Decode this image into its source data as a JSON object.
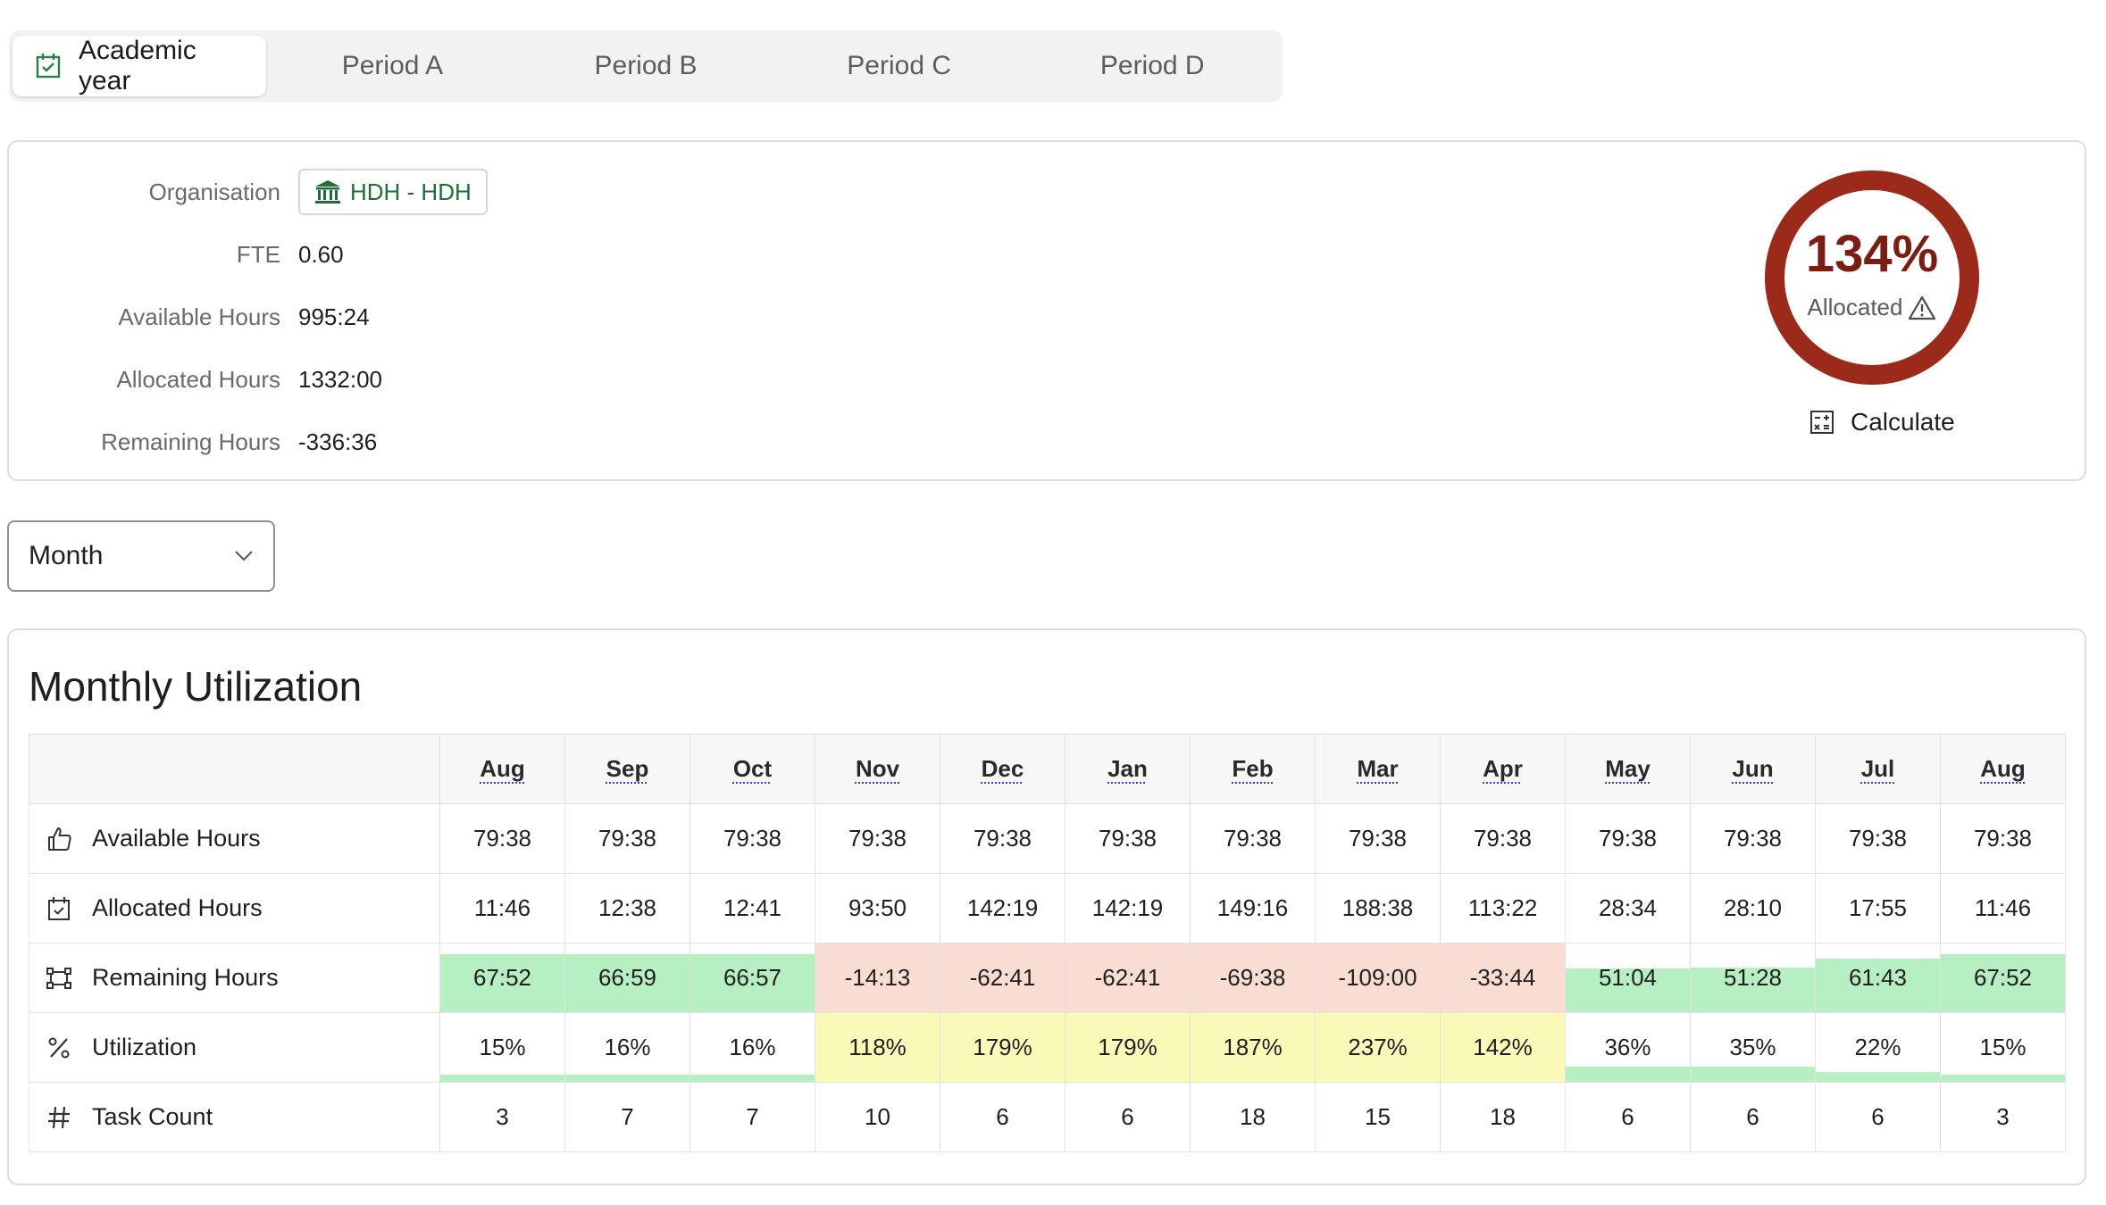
{
  "tabs": [
    {
      "label": "Academic year",
      "active": true,
      "icon": "calendar-check-icon"
    },
    {
      "label": "Period A",
      "active": false
    },
    {
      "label": "Period B",
      "active": false
    },
    {
      "label": "Period C",
      "active": false
    },
    {
      "label": "Period D",
      "active": false
    }
  ],
  "summary": {
    "organisation_label": "Organisation",
    "organisation_value": "HDH - HDH",
    "fte_label": "FTE",
    "fte_value": "0.60",
    "available_label": "Available Hours",
    "available_value": "995:24",
    "allocated_label": "Allocated Hours",
    "allocated_value": "1332:00",
    "remaining_label": "Remaining Hours",
    "remaining_value": "-336:36",
    "gauge_percent": "134%",
    "gauge_label": "Allocated",
    "calculate_label": "Calculate"
  },
  "period_select": {
    "value": "Month"
  },
  "monthly": {
    "title": "Monthly Utilization",
    "months": [
      "Aug",
      "Sep",
      "Oct",
      "Nov",
      "Dec",
      "Jan",
      "Feb",
      "Mar",
      "Apr",
      "May",
      "Jun",
      "Jul",
      "Aug"
    ],
    "row_labels": {
      "available": "Available Hours",
      "allocated": "Allocated Hours",
      "remaining": "Remaining Hours",
      "utilization": "Utilization",
      "tasks": "Task Count"
    },
    "available": [
      "79:38",
      "79:38",
      "79:38",
      "79:38",
      "79:38",
      "79:38",
      "79:38",
      "79:38",
      "79:38",
      "79:38",
      "79:38",
      "79:38",
      "79:38"
    ],
    "allocated": [
      "11:46",
      "12:38",
      "12:41",
      "93:50",
      "142:19",
      "142:19",
      "149:16",
      "188:38",
      "113:22",
      "28:34",
      "28:10",
      "17:55",
      "11:46"
    ],
    "remaining": [
      "67:52",
      "66:59",
      "66:57",
      "-14:13",
      "-62:41",
      "-62:41",
      "-69:38",
      "-109:00",
      "-33:44",
      "51:04",
      "51:28",
      "61:43",
      "67:52"
    ],
    "remaining_fill": [
      0.85,
      0.84,
      0.84,
      1,
      1,
      1,
      1,
      1,
      1,
      0.64,
      0.65,
      0.78,
      0.85
    ],
    "utilization": [
      "15%",
      "16%",
      "16%",
      "118%",
      "179%",
      "179%",
      "187%",
      "237%",
      "142%",
      "36%",
      "35%",
      "22%",
      "15%"
    ],
    "utilization_fill": [
      0.15,
      0.16,
      0.16,
      1,
      1,
      1,
      1,
      1,
      1,
      0.36,
      0.35,
      0.22,
      0.15
    ],
    "tasks": [
      "3",
      "7",
      "7",
      "10",
      "6",
      "6",
      "18",
      "15",
      "18",
      "6",
      "6",
      "6",
      "3"
    ]
  },
  "colors": {
    "accent_green": "#236b3a",
    "gauge_red": "#9b2a1b",
    "positive_fill": "#b6efc1",
    "negative_fill": "#f9dcd2",
    "over_fill": "#fbf9b8"
  }
}
